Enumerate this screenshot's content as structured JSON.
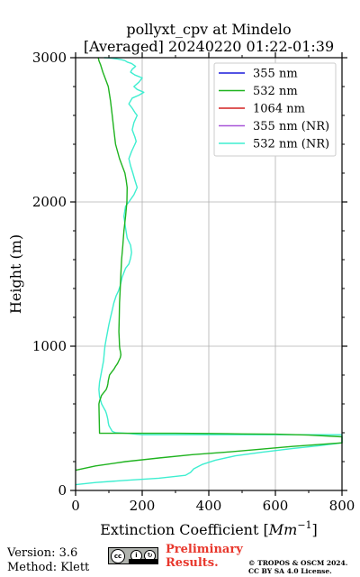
{
  "chart_data": {
    "type": "line",
    "title": "pollyxt_cpv at Mindelo",
    "subtitle": "[Averaged] 20240220 01:22-01:39",
    "xlabel_main": "Extinction Coefficient [",
    "xlabel_unit": "Mm",
    "xlabel_sup": "−1",
    "xlabel_end": "]",
    "ylabel": "Height (m)",
    "xlim": [
      0,
      800
    ],
    "ylim": [
      0,
      3000
    ],
    "xticks": [
      0,
      200,
      400,
      600,
      800
    ],
    "yticks": [
      0,
      1000,
      2000,
      3000
    ],
    "grid": true,
    "legend_position": "top-right",
    "series": [
      {
        "name": "355 nm",
        "color": "#1a1adc",
        "x": [],
        "y": []
      },
      {
        "name": "532 nm",
        "color": "#1fb31f",
        "x": [
          0,
          60,
          150,
          250,
          350,
          450,
          550,
          650,
          800,
          800,
          700,
          600,
          500,
          400,
          300,
          200,
          150,
          120,
          108,
          100,
          96,
          90,
          82,
          75,
          72,
          70,
          72,
          75,
          78,
          85,
          92,
          95,
          97,
          98,
          100,
          102,
          108,
          115,
          120,
          126,
          130,
          134,
          136,
          135,
          133,
          132,
          131,
          130,
          131,
          132,
          134,
          136,
          138,
          142,
          145,
          150,
          154,
          155,
          152,
          148,
          140,
          132,
          126,
          120,
          115,
          110,
          105,
          98,
          90,
          82,
          75,
          70,
          68
        ],
        "y": [
          140,
          170,
          200,
          225,
          248,
          265,
          285,
          305,
          330,
          372,
          384,
          390,
          392,
          395,
          396,
          396,
          396,
          396,
          396,
          396,
          396,
          396,
          396,
          396,
          396,
          600,
          620,
          640,
          660,
          680,
          700,
          720,
          740,
          760,
          780,
          800,
          820,
          840,
          860,
          880,
          900,
          920,
          940,
          960,
          980,
          1000,
          1050,
          1100,
          1200,
          1300,
          1400,
          1500,
          1600,
          1700,
          1800,
          1900,
          2000,
          2100,
          2150,
          2200,
          2250,
          2300,
          2350,
          2400,
          2500,
          2600,
          2700,
          2800,
          2850,
          2900,
          2950,
          2980,
          3000
        ]
      },
      {
        "name": "1064 nm",
        "color": "#d42020",
        "x": [],
        "y": []
      },
      {
        "name": "355 nm (NR)",
        "color": "#a855d8",
        "x": [],
        "y": []
      },
      {
        "name": "532 nm (NR)",
        "color": "#3eeed0",
        "x": [
          0,
          60,
          150,
          250,
          330,
          345,
          355,
          380,
          420,
          480,
          560,
          650,
          730,
          800,
          800,
          700,
          600,
          500,
          400,
          300,
          200,
          180,
          160,
          140,
          120,
          110,
          105,
          100,
          98,
          97,
          95,
          93,
          90,
          85,
          78,
          72,
          70,
          72,
          76,
          80,
          84,
          86,
          88,
          92,
          96,
          100,
          105,
          110,
          115,
          122,
          128,
          134,
          140,
          150,
          160,
          165,
          168,
          165,
          155,
          150,
          145,
          150,
          160,
          175,
          185,
          178,
          172,
          165,
          160,
          168,
          178,
          182,
          178,
          170,
          175,
          185,
          178,
          170,
          160,
          170,
          190,
          205,
          185,
          175,
          190,
          200,
          178,
          165,
          170,
          180,
          168,
          155,
          148,
          140,
          128,
          118,
          108,
          96,
          86
        ],
        "y": [
          40,
          55,
          70,
          85,
          105,
          125,
          150,
          180,
          210,
          240,
          265,
          290,
          310,
          330,
          386,
          386,
          386,
          386,
          386,
          386,
          386,
          390,
          395,
          398,
          400,
          410,
          430,
          450,
          470,
          490,
          510,
          530,
          550,
          570,
          600,
          650,
          700,
          750,
          800,
          850,
          900,
          950,
          1000,
          1050,
          1100,
          1150,
          1200,
          1250,
          1300,
          1350,
          1380,
          1420,
          1480,
          1540,
          1570,
          1610,
          1650,
          1700,
          1750,
          1820,
          1900,
          1970,
          2000,
          2050,
          2100,
          2150,
          2200,
          2250,
          2300,
          2350,
          2400,
          2420,
          2450,
          2500,
          2550,
          2600,
          2620,
          2650,
          2680,
          2720,
          2740,
          2760,
          2780,
          2800,
          2830,
          2860,
          2880,
          2900,
          2920,
          2940,
          2960,
          2970,
          2980,
          2985,
          2990,
          2994,
          2997,
          2999,
          3000
        ]
      }
    ]
  },
  "footer": {
    "version": "Version: 3.6",
    "method": "Method: Klett",
    "preliminary_line1": "Preliminary",
    "preliminary_line2": "Results.",
    "copyright_line1": "© TROPOS & OSCM 2024.",
    "copyright_line2": "CC BY SA 4.0 License.",
    "license_badge": "CC BY SA"
  }
}
